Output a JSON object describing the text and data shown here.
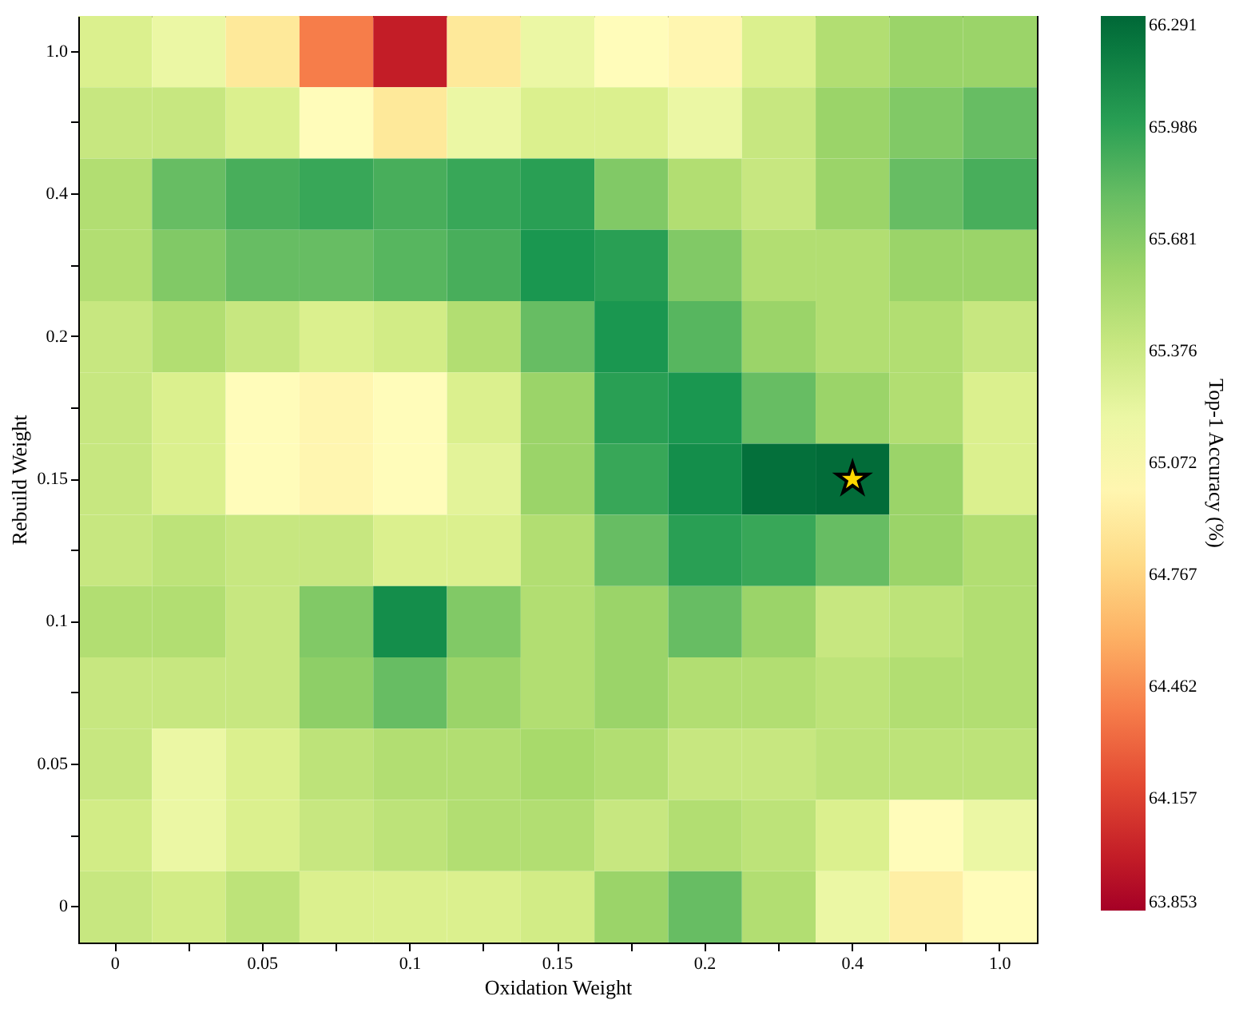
{
  "chart_data": {
    "type": "heatmap",
    "xlabel": "Oxidation Weight",
    "ylabel": "Rebuild Weight",
    "clabel": "Top-1 Accuracy (%)",
    "categories": [
      "0",
      null,
      "0.05",
      null,
      "0.1",
      null,
      "0.15",
      null,
      "0.2",
      null,
      "0.4",
      null,
      "1.0"
    ],
    "y_categories": [
      "1.0",
      null,
      "0.4",
      null,
      "0.2",
      null,
      "0.15",
      null,
      "0.1",
      null,
      "0.05",
      null,
      "0"
    ],
    "cells": [
      [
        65.3,
        65.2,
        64.9,
        64.4,
        64.0,
        64.9,
        65.2,
        65.05,
        65.0,
        65.3,
        65.5,
        65.6,
        65.6
      ],
      [
        65.4,
        65.4,
        65.3,
        65.05,
        64.9,
        65.2,
        65.3,
        65.3,
        65.2,
        65.4,
        65.6,
        65.7,
        65.8
      ],
      [
        65.5,
        65.8,
        65.9,
        65.95,
        65.9,
        65.95,
        66.0,
        65.7,
        65.5,
        65.4,
        65.6,
        65.8,
        65.9
      ],
      [
        65.5,
        65.7,
        65.8,
        65.8,
        65.85,
        65.9,
        66.05,
        66.0,
        65.7,
        65.5,
        65.5,
        65.6,
        65.6
      ],
      [
        65.4,
        65.5,
        65.4,
        65.3,
        65.35,
        65.5,
        65.8,
        66.05,
        65.85,
        65.6,
        65.5,
        65.5,
        65.4
      ],
      [
        65.4,
        65.3,
        65.05,
        65.0,
        65.05,
        65.3,
        65.6,
        66.0,
        66.05,
        65.8,
        65.6,
        65.5,
        65.3
      ],
      [
        65.4,
        65.3,
        65.05,
        65.0,
        65.05,
        65.25,
        65.6,
        65.95,
        66.1,
        66.25,
        66.27,
        65.6,
        65.3
      ],
      [
        65.4,
        65.45,
        65.4,
        65.4,
        65.3,
        65.3,
        65.5,
        65.8,
        66.0,
        65.95,
        65.8,
        65.6,
        65.5
      ],
      [
        65.5,
        65.5,
        65.4,
        65.7,
        66.1,
        65.7,
        65.5,
        65.6,
        65.8,
        65.6,
        65.4,
        65.45,
        65.5
      ],
      [
        65.4,
        65.4,
        65.4,
        65.65,
        65.8,
        65.6,
        65.5,
        65.6,
        65.5,
        65.5,
        65.45,
        65.5,
        65.5
      ],
      [
        65.4,
        65.2,
        65.3,
        65.45,
        65.5,
        65.5,
        65.55,
        65.5,
        65.4,
        65.4,
        65.45,
        65.45,
        65.45
      ],
      [
        65.35,
        65.2,
        65.3,
        65.4,
        65.45,
        65.5,
        65.5,
        65.4,
        65.5,
        65.45,
        65.3,
        65.05,
        65.2
      ],
      [
        65.4,
        65.35,
        65.45,
        65.3,
        65.3,
        65.3,
        65.35,
        65.6,
        65.8,
        65.5,
        65.2,
        64.95,
        65.05
      ]
    ],
    "clim": [
      63.853,
      66.291
    ],
    "cticks": [
      63.853,
      64.157,
      64.462,
      64.767,
      65.072,
      65.376,
      65.681,
      65.986,
      66.291
    ]
  }
}
